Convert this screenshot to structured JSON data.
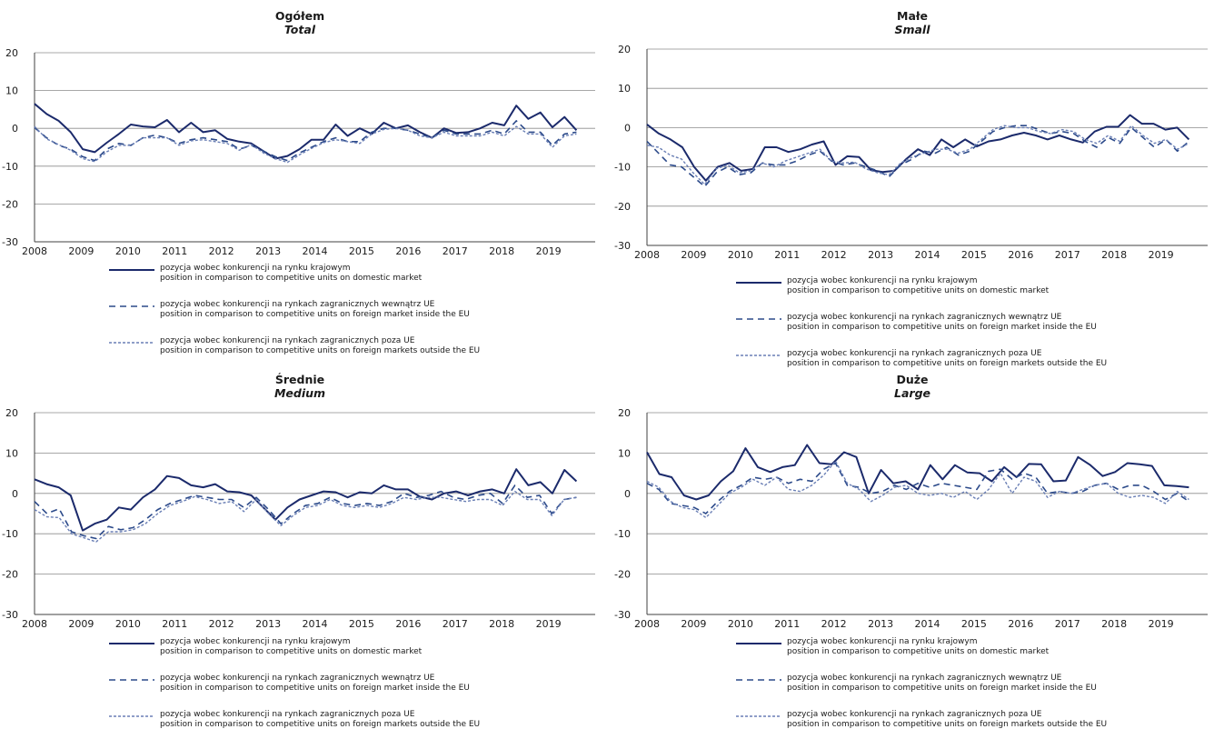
{
  "colors": {
    "domestic": "#1b2a6b",
    "eu": "#2c4a8a",
    "outside": "#6a7fb5",
    "grid": "#8c8c8c",
    "axis": "#404040"
  },
  "legend": [
    {
      "pl": "pozycja wobec konkurencji na rynku krajowym",
      "en": "position in comparison to competitive units on domestic market"
    },
    {
      "pl": "pozycja wobec konkurencji na rynkach zagranicznych wewnątrz UE",
      "en": "position in comparison to competitive units on foreign market inside the EU"
    },
    {
      "pl": "pozycja wobec konkurencji na rynkach zagranicznych poza UE",
      "en": "position in comparison to competitive units on foreign markets outside the EU"
    }
  ],
  "chart_data": [
    {
      "type": "line",
      "title": "Ogółem",
      "subtitle": "Total",
      "x_ticks": [
        "2008",
        "2009",
        "2010",
        "2011",
        "2012",
        "2013",
        "2014",
        "2015",
        "2016",
        "2017",
        "2018",
        "2019"
      ],
      "x_range": [
        2008,
        2020
      ],
      "ylim": [
        -30,
        20
      ],
      "y_ticks": [
        20,
        10,
        0,
        -10,
        -20,
        -30
      ],
      "grid": true,
      "legend_position": "bottom",
      "series": [
        {
          "name": "pozycja wobec konkurencji na rynku krajowym",
          "style": "solid",
          "values": [
            6.5,
            3.8,
            2.0,
            -1.0,
            -5.5,
            -6.3,
            -3.8,
            -1.5,
            1.0,
            0.5,
            0.3,
            2.2,
            -1.0,
            1.5,
            -1.0,
            -0.5,
            -2.8,
            -3.5,
            -4.0,
            -6.0,
            -8.0,
            -7.3,
            -5.5,
            -3.0,
            -3.0,
            1.0,
            -2.0,
            0.0,
            -1.5,
            1.5,
            0.0,
            0.8,
            -1.0,
            -2.5,
            0.0,
            -1.2,
            -1.0,
            0.0,
            1.5,
            0.8,
            6.0,
            2.5,
            4.2,
            0.3,
            3.0,
            -0.5
          ]
        },
        {
          "name": "pozycja wobec konkurencji na rynkach zagranicznych wewnątrz UE",
          "style": "dashed",
          "values": [
            0.2,
            -2.5,
            -4.5,
            -5.5,
            -7.5,
            -8.5,
            -5.5,
            -4.0,
            -4.5,
            -2.5,
            -1.8,
            -2.5,
            -4.0,
            -3.0,
            -2.5,
            -3.0,
            -3.5,
            -5.5,
            -4.5,
            -6.0,
            -7.5,
            -8.5,
            -6.5,
            -5.0,
            -3.5,
            -2.5,
            -3.5,
            -3.5,
            -1.0,
            0.0,
            0.0,
            -0.5,
            -1.5,
            -2.5,
            -0.5,
            -1.5,
            -1.5,
            -1.5,
            -0.5,
            -1.5,
            2.0,
            -1.0,
            -1.0,
            -4.5,
            -1.5,
            -1.0
          ]
        },
        {
          "name": "pozycja wobec konkurencji na rynkach zagranicznych poza UE",
          "style": "fine-dashed",
          "values": [
            0.5,
            -2.8,
            -4.3,
            -5.8,
            -8.0,
            -8.8,
            -6.2,
            -4.5,
            -4.5,
            -2.5,
            -2.5,
            -2.5,
            -4.5,
            -3.3,
            -3.0,
            -3.5,
            -4.0,
            -5.8,
            -4.3,
            -6.5,
            -8.0,
            -9.0,
            -7.0,
            -5.3,
            -3.8,
            -3.0,
            -3.5,
            -4.0,
            -1.5,
            -0.3,
            0.0,
            -0.5,
            -2.0,
            -2.5,
            -1.0,
            -2.0,
            -2.0,
            -2.0,
            -1.0,
            -2.0,
            0.5,
            -1.5,
            -1.5,
            -5.0,
            -2.0,
            -1.5
          ]
        }
      ]
    },
    {
      "type": "line",
      "title": "Małe",
      "subtitle": "Small",
      "x_ticks": [
        "2008",
        "2009",
        "2010",
        "2011",
        "2012",
        "2013",
        "2014",
        "2015",
        "2016",
        "2017",
        "2018",
        "2019"
      ],
      "x_range": [
        2008,
        2020
      ],
      "ylim": [
        -30,
        20
      ],
      "y_ticks": [
        20,
        10,
        0,
        -10,
        -20,
        -30
      ],
      "grid": true,
      "legend_position": "bottom",
      "series": [
        {
          "name": "pozycja wobec konkurencji na rynku krajowym",
          "style": "solid",
          "values": [
            0.8,
            -1.5,
            -3.0,
            -5.0,
            -10.0,
            -13.5,
            -10.0,
            -9.0,
            -11.0,
            -10.5,
            -5.0,
            -5.0,
            -6.2,
            -5.5,
            -4.3,
            -3.5,
            -9.5,
            -7.3,
            -7.5,
            -10.8,
            -11.3,
            -11.0,
            -8.0,
            -5.5,
            -7.0,
            -3.0,
            -5.0,
            -3.0,
            -4.8,
            -3.5,
            -3.0,
            -2.0,
            -1.3,
            -2.0,
            -3.0,
            -2.0,
            -3.0,
            -3.8,
            -1.0,
            0.2,
            0.2,
            3.2,
            1.0,
            1.0,
            -0.5,
            0.0,
            -3.0
          ]
        },
        {
          "name": "pozycja wobec konkurencji na rynkach zagranicznych wewnątrz UE",
          "style": "dashed",
          "values": [
            -3.5,
            -6.5,
            -9.5,
            -10.0,
            -12.5,
            -15.0,
            -11.5,
            -10.0,
            -12.0,
            -11.5,
            -9.0,
            -9.5,
            -9.5,
            -8.5,
            -7.0,
            -6.0,
            -8.5,
            -9.5,
            -9.0,
            -10.0,
            -11.0,
            -12.5,
            -9.5,
            -8.0,
            -6.0,
            -6.5,
            -5.0,
            -7.0,
            -6.0,
            -3.5,
            -1.0,
            0.0,
            0.5,
            0.5,
            -0.5,
            -1.5,
            -1.0,
            -1.5,
            -3.5,
            -5.0,
            -2.5,
            -4.0,
            0.0,
            -2.5,
            -5.0,
            -3.0,
            -6.0,
            -3.5
          ]
        },
        {
          "name": "pozycja wobec konkurencji na rynkach zagranicznych poza UE",
          "style": "fine-dashed",
          "values": [
            -4.5,
            -5.0,
            -7.0,
            -8.0,
            -11.5,
            -14.5,
            -10.5,
            -9.5,
            -11.5,
            -11.0,
            -9.0,
            -10.0,
            -8.5,
            -7.5,
            -6.5,
            -5.5,
            -8.5,
            -9.0,
            -8.8,
            -10.5,
            -11.5,
            -12.0,
            -9.0,
            -7.5,
            -6.5,
            -5.5,
            -5.5,
            -6.5,
            -5.5,
            -3.0,
            -0.5,
            0.5,
            0.0,
            0.0,
            -1.0,
            -1.5,
            -0.5,
            -1.0,
            -3.0,
            -4.0,
            -2.0,
            -3.5,
            0.5,
            -2.0,
            -4.0,
            -3.0,
            -5.5,
            -4.0
          ]
        }
      ]
    },
    {
      "type": "line",
      "title": "Średnie",
      "subtitle": "Medium",
      "x_ticks": [
        "2008",
        "2009",
        "2010",
        "2011",
        "2012",
        "2013",
        "2014",
        "2015",
        "2016",
        "2017",
        "2018",
        "2019"
      ],
      "x_range": [
        2008,
        2020
      ],
      "ylim": [
        -30,
        20
      ],
      "y_ticks": [
        20,
        10,
        0,
        -10,
        -20,
        -30
      ],
      "grid": true,
      "legend_position": "bottom",
      "series": [
        {
          "name": "pozycja wobec konkurencji na rynku krajowym",
          "style": "solid",
          "values": [
            3.5,
            2.3,
            1.5,
            -0.5,
            -9.2,
            -7.5,
            -6.5,
            -3.5,
            -4.0,
            -1.0,
            1.0,
            4.3,
            3.8,
            2.0,
            1.5,
            2.3,
            0.5,
            0.3,
            -0.5,
            -3.5,
            -6.5,
            -3.5,
            -1.5,
            -0.5,
            0.5,
            0.3,
            -1.0,
            0.3,
            0.0,
            2.0,
            1.0,
            1.0,
            -0.8,
            -1.5,
            0.0,
            0.5,
            -0.5,
            0.5,
            1.0,
            0.0,
            6.0,
            2.0,
            2.8,
            0.0,
            5.8,
            3.0
          ]
        },
        {
          "name": "pozycja wobec konkurencji na rynkach zagranicznych wewnątrz UE",
          "style": "dashed",
          "values": [
            -2.0,
            -5.0,
            -3.8,
            -9.5,
            -10.5,
            -11.2,
            -8.2,
            -9.0,
            -8.5,
            -6.5,
            -4.0,
            -2.5,
            -1.5,
            -0.5,
            -1.0,
            -1.5,
            -1.5,
            -3.5,
            -1.0,
            -4.0,
            -7.5,
            -5.0,
            -3.0,
            -2.5,
            -1.0,
            -2.5,
            -3.0,
            -2.5,
            -3.0,
            -2.0,
            0.0,
            -1.0,
            -0.5,
            0.5,
            -1.0,
            -1.5,
            -0.5,
            0.0,
            -2.5,
            2.0,
            -1.0,
            -0.5,
            -5.0,
            -1.5,
            -1.0
          ]
        },
        {
          "name": "pozycja wobec konkurencji na rynkach zagranicznych poza UE",
          "style": "fine-dashed",
          "values": [
            -4.0,
            -5.8,
            -6.0,
            -10.0,
            -11.0,
            -12.0,
            -9.5,
            -9.5,
            -9.0,
            -7.5,
            -5.0,
            -3.0,
            -2.0,
            -0.8,
            -1.5,
            -2.5,
            -2.0,
            -4.5,
            -1.5,
            -5.0,
            -8.0,
            -5.5,
            -3.5,
            -3.0,
            -1.5,
            -3.0,
            -3.5,
            -3.0,
            -3.5,
            -2.5,
            -1.0,
            -1.5,
            -1.0,
            -1.0,
            -1.5,
            -2.0,
            -1.5,
            -1.5,
            -3.0,
            0.5,
            -1.5,
            -1.5,
            -5.5,
            -1.5,
            -1.0
          ]
        }
      ]
    },
    {
      "type": "line",
      "title": "Duże",
      "subtitle": "Large",
      "x_ticks": [
        "2008",
        "2009",
        "2010",
        "2011",
        "2012",
        "2013",
        "2014",
        "2015",
        "2016",
        "2017",
        "2018",
        "2019"
      ],
      "x_range": [
        2008,
        2020
      ],
      "ylim": [
        -30,
        20
      ],
      "y_ticks": [
        20,
        10,
        0,
        -10,
        -20,
        -30
      ],
      "grid": true,
      "legend_position": "bottom",
      "series": [
        {
          "name": "pozycja wobec konkurencji na rynku krajowym",
          "style": "solid",
          "values": [
            10.2,
            4.8,
            4.0,
            -0.5,
            -1.5,
            -0.5,
            3.0,
            5.5,
            11.2,
            6.5,
            5.3,
            6.5,
            7.0,
            12.0,
            7.5,
            7.2,
            10.2,
            9.0,
            0.0,
            5.8,
            2.5,
            3.0,
            1.0,
            7.0,
            3.5,
            7.0,
            5.2,
            5.0,
            3.0,
            6.5,
            4.0,
            7.3,
            7.2,
            3.0,
            3.2,
            9.0,
            7.0,
            4.3,
            5.3,
            7.5,
            7.2,
            6.8,
            2.0,
            1.8,
            1.5
          ]
        },
        {
          "name": "pozycja wobec konkurencji na rynkach zagranicznych wewnątrz UE",
          "style": "dashed",
          "values": [
            2.5,
            1.0,
            -2.5,
            -3.0,
            -3.5,
            -5.0,
            -2.0,
            0.5,
            2.0,
            4.0,
            3.5,
            4.0,
            2.5,
            3.5,
            3.0,
            6.0,
            7.5,
            2.0,
            1.5,
            0.0,
            0.5,
            2.0,
            1.0,
            2.5,
            1.5,
            2.5,
            2.0,
            1.5,
            1.0,
            5.5,
            6.0,
            3.5,
            5.0,
            4.0,
            0.0,
            0.5,
            0.0,
            0.5,
            2.0,
            2.5,
            1.0,
            2.0,
            2.0,
            0.5,
            -1.5,
            0.0,
            -2.0
          ]
        },
        {
          "name": "pozycja wobec konkurencji na rynkach zagranicznych poza UE",
          "style": "fine-dashed",
          "values": [
            3.0,
            1.5,
            -2.0,
            -3.5,
            -4.0,
            -6.0,
            -3.0,
            0.0,
            1.5,
            3.5,
            2.0,
            4.0,
            1.0,
            0.5,
            2.0,
            4.5,
            8.0,
            2.5,
            1.0,
            -2.0,
            -0.5,
            1.5,
            2.0,
            0.0,
            -0.5,
            0.0,
            -1.0,
            0.5,
            -1.5,
            1.0,
            5.0,
            0.0,
            4.0,
            3.0,
            -1.0,
            0.5,
            0.0,
            1.0,
            2.0,
            2.5,
            0.0,
            -1.0,
            -0.5,
            -1.0,
            -2.5,
            0.5,
            -1.5
          ]
        }
      ]
    }
  ]
}
